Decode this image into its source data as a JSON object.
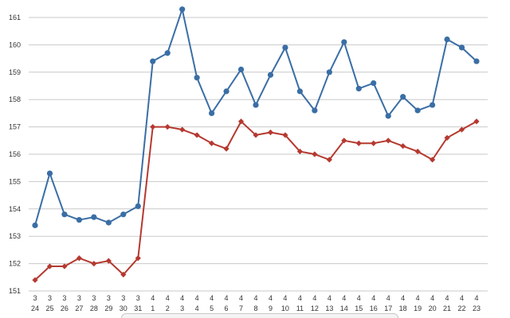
{
  "chart_data": {
    "type": "line",
    "title": "",
    "xlabel": "",
    "ylabel": "",
    "ylim": [
      151,
      161
    ],
    "yticks": [
      151,
      152,
      153,
      154,
      155,
      156,
      157,
      158,
      159,
      160,
      161
    ],
    "grid": true,
    "legend": "none",
    "x_month_labels": [
      "3",
      "3",
      "3",
      "3",
      "3",
      "3",
      "3",
      "3",
      "4",
      "4",
      "4",
      "4",
      "4",
      "4",
      "4",
      "4",
      "4",
      "4",
      "4",
      "4",
      "4",
      "4",
      "4",
      "4",
      "4",
      "4",
      "4",
      "4",
      "4",
      "4",
      "4"
    ],
    "x_day_labels": [
      "24",
      "25",
      "26",
      "27",
      "28",
      "29",
      "30",
      "31",
      "1",
      "2",
      "3",
      "4",
      "5",
      "6",
      "7",
      "8",
      "9",
      "10",
      "11",
      "12",
      "13",
      "14",
      "15",
      "16",
      "17",
      "18",
      "19",
      "20",
      "21",
      "22",
      "23"
    ],
    "series": [
      {
        "color": "#3a6ea5",
        "marker": "circle",
        "values": [
          153.4,
          155.3,
          153.8,
          153.6,
          153.7,
          153.5,
          153.8,
          154.1,
          159.4,
          159.7,
          161.3,
          158.8,
          157.5,
          158.3,
          159.1,
          157.8,
          158.9,
          159.9,
          158.3,
          157.6,
          159.0,
          160.1,
          158.4,
          158.6,
          157.4,
          158.1,
          157.6,
          157.8,
          160.2,
          159.9,
          159.4
        ]
      },
      {
        "color": "#b5392f",
        "marker": "diamond",
        "values": [
          151.4,
          151.9,
          151.9,
          152.2,
          152.0,
          152.1,
          151.6,
          152.2,
          157.0,
          157.0,
          156.9,
          156.7,
          156.4,
          156.2,
          157.2,
          156.7,
          156.8,
          156.7,
          156.1,
          156.0,
          155.8,
          156.5,
          156.4,
          156.4,
          156.5,
          156.3,
          156.1,
          155.8,
          156.6,
          156.9,
          157.2
        ]
      }
    ]
  }
}
